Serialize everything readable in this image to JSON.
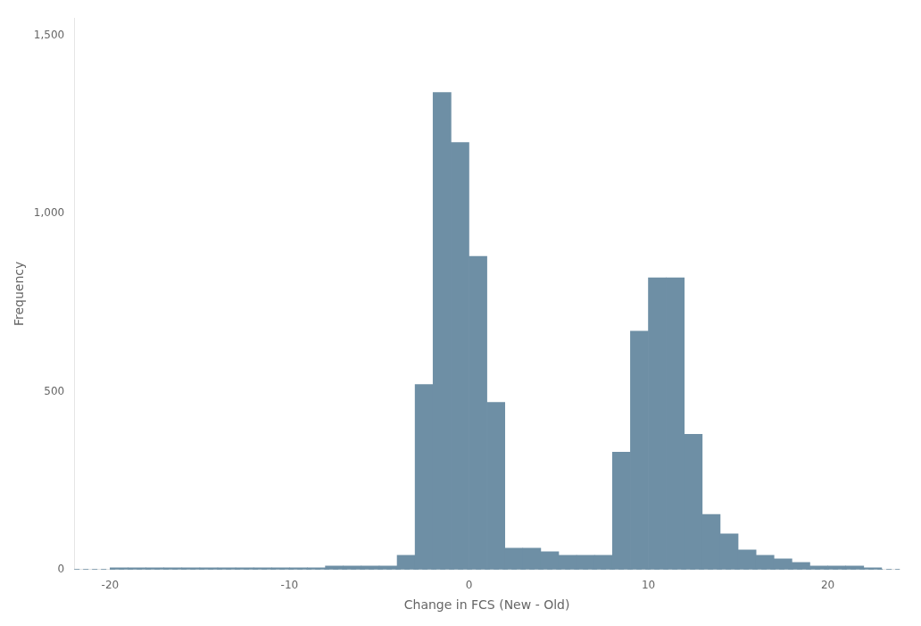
{
  "chart_data": {
    "type": "histogram",
    "xlabel": "Change in FCS (New - Old)",
    "ylabel": "Frequency",
    "bins": [
      -20,
      -19,
      -18,
      -17,
      -16,
      -15,
      -14,
      -13,
      -12,
      -11,
      -10,
      -9,
      -8,
      -7,
      -6,
      -5,
      -4,
      -3,
      -2,
      -1,
      0,
      1,
      2,
      3,
      4,
      5,
      6,
      7,
      8,
      9,
      10,
      11,
      12,
      13,
      14,
      15,
      16,
      17,
      18,
      19,
      20,
      21,
      22,
      23
    ],
    "values": [
      5,
      5,
      5,
      5,
      5,
      5,
      5,
      5,
      5,
      5,
      5,
      5,
      10,
      10,
      10,
      10,
      40,
      520,
      1340,
      1200,
      880,
      470,
      60,
      60,
      50,
      40,
      40,
      40,
      330,
      670,
      820,
      820,
      380,
      155,
      100,
      55,
      40,
      30,
      20,
      10,
      10,
      10,
      5
    ],
    "color": "#6e8fa5",
    "hlines": [
      {
        "y": 0,
        "x": [
          -22,
          24
        ],
        "color": "#6e8fa5",
        "line_style": "dashed"
      }
    ],
    "xlim": [
      -22,
      24
    ],
    "xticks": [
      -20,
      -10,
      0,
      10,
      20
    ],
    "ylim": [
      0,
      1550
    ],
    "yticks": [
      0,
      500,
      {
        "value": 1000,
        "label": "1,000"
      },
      {
        "value": 1500,
        "label": "1,500"
      }
    ],
    "grid": false
  }
}
